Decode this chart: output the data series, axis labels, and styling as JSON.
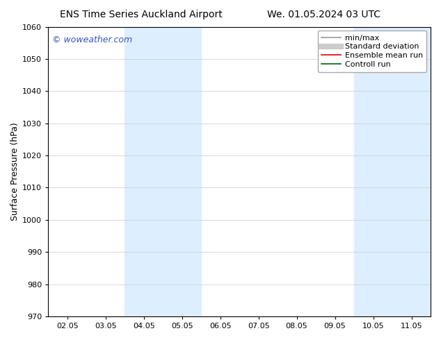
{
  "title_left": "ENS Time Series Auckland Airport",
  "title_right": "We. 01.05.2024 03 UTC",
  "ylabel": "Surface Pressure (hPa)",
  "ylim": [
    970,
    1060
  ],
  "yticks": [
    970,
    980,
    990,
    1000,
    1010,
    1020,
    1030,
    1040,
    1050,
    1060
  ],
  "xtick_labels": [
    "02.05",
    "03.05",
    "04.05",
    "05.05",
    "06.05",
    "07.05",
    "08.05",
    "09.05",
    "10.05",
    "11.05"
  ],
  "watermark": "© woweather.com",
  "watermark_color": "#3355bb",
  "bg_color": "#ffffff",
  "plot_bg_color": "#ffffff",
  "shaded_regions": [
    {
      "xmin": 2.0,
      "xmax": 4.0,
      "color": "#ddeeff"
    },
    {
      "xmin": 8.0,
      "xmax": 10.0,
      "color": "#ddeeff"
    }
  ],
  "legend_items": [
    {
      "label": "min/max",
      "color": "#999999",
      "lw": 1.2
    },
    {
      "label": "Standard deviation",
      "color": "#cccccc",
      "lw": 5
    },
    {
      "label": "Ensemble mean run",
      "color": "#dd0000",
      "lw": 1.2
    },
    {
      "label": "Controll run",
      "color": "#006600",
      "lw": 1.2
    }
  ],
  "title_fontsize": 10,
  "axis_label_fontsize": 9,
  "tick_fontsize": 8,
  "legend_fontsize": 8,
  "watermark_fontsize": 9
}
